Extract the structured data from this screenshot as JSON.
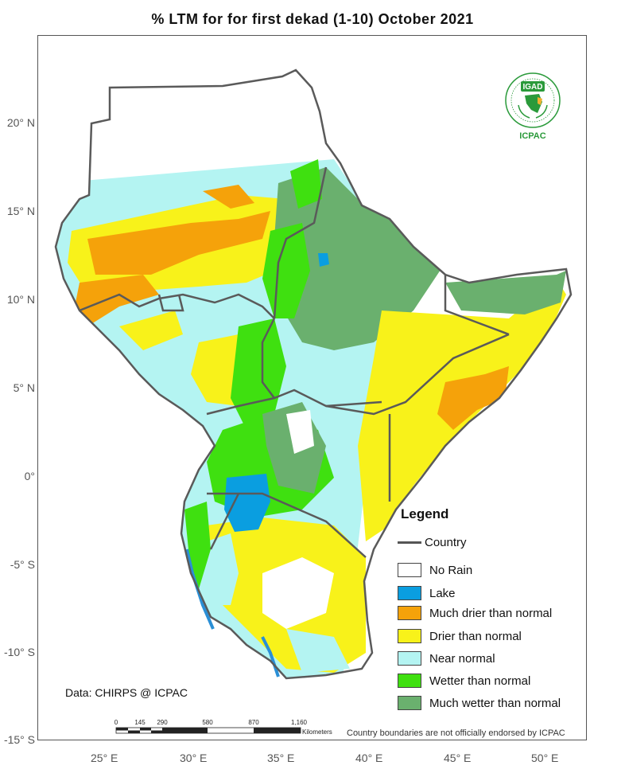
{
  "title": "% LTM for  for first dekad (1-10) October 2021",
  "lat_labels": [
    "20° N",
    "15° N",
    "10° N",
    "5° N",
    "0°",
    "-5° S",
    "-10° S",
    "-15° S"
  ],
  "lon_labels": [
    "25° E",
    "30° E",
    "35° E",
    "40° E",
    "45° E",
    "50° E"
  ],
  "legend": {
    "title": "Legend",
    "country_label": "Country",
    "items": [
      {
        "label": "No Rain",
        "color": "#ffffff"
      },
      {
        "label": "Lake",
        "color": "#0a9ee0"
      },
      {
        "label": "Much drier than normal",
        "color": "#f5a20a"
      },
      {
        "label": "Drier than normal",
        "color": "#f8f21a"
      },
      {
        "label": "Near normal",
        "color": "#b4f4f2"
      },
      {
        "label": "Wetter than normal",
        "color": "#3fe010"
      },
      {
        "label": "Much wetter than normal",
        "color": "#6ab06e"
      }
    ]
  },
  "credit": "Data: CHIRPS @ ICPAC",
  "disclaimer": "Country boundaries are not officially endorsed by ICPAC",
  "scale": {
    "ticks": [
      "0",
      "145",
      "290",
      "580",
      "870",
      "1,160"
    ],
    "unit": "Kilometers"
  },
  "logo": {
    "top_text": "IGAD",
    "bottom_text": "ICPAC",
    "color": "#2a9a3a"
  },
  "colors": {
    "country_border": "#5a5a5a",
    "frame": "#555555",
    "ocean_coast": "#2a8fd6"
  }
}
